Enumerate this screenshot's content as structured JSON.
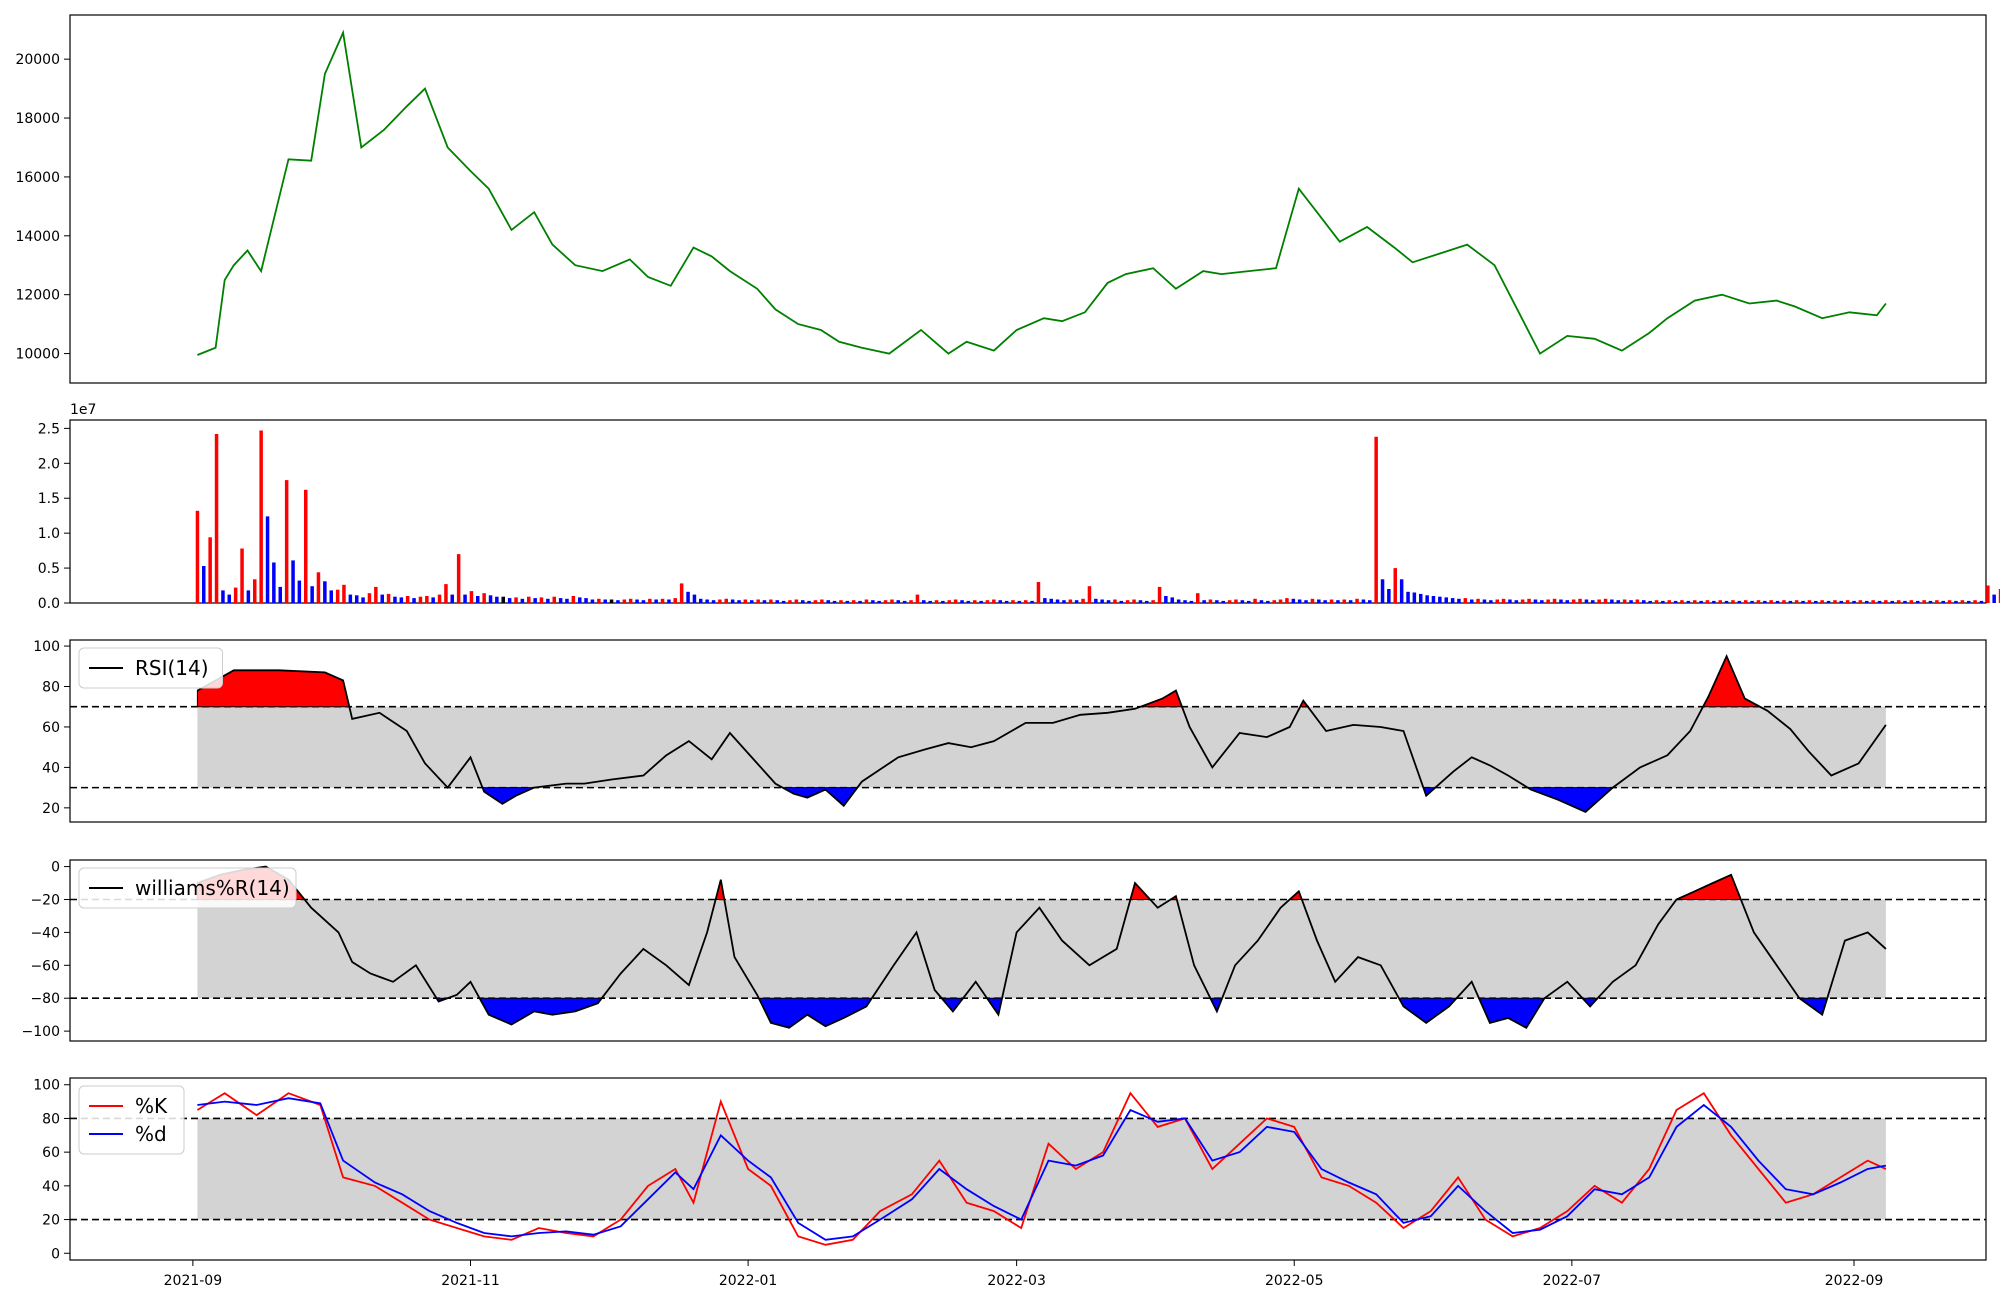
{
  "chart_data": [
    {
      "panel": "price",
      "type": "line",
      "ylim": [
        9000,
        21500
      ],
      "yticks": [
        "10000",
        "12000",
        "14000",
        "16000",
        "18000",
        "20000"
      ],
      "colors": {
        "line": "#008000"
      },
      "x": [
        "2021-09-02",
        "2021-09-06",
        "2021-09-08",
        "2021-09-10",
        "2021-09-13",
        "2021-09-16",
        "2021-09-22",
        "2021-09-27",
        "2021-09-30",
        "2021-10-04",
        "2021-10-08",
        "2021-10-13",
        "2021-10-18",
        "2021-10-22",
        "2021-10-27",
        "2021-11-01",
        "2021-11-05",
        "2021-11-10",
        "2021-11-15",
        "2021-11-19",
        "2021-11-24",
        "2021-11-30",
        "2021-12-06",
        "2021-12-10",
        "2021-12-15",
        "2021-12-20",
        "2021-12-24",
        "2021-12-28",
        "2022-01-03",
        "2022-01-07",
        "2022-01-12",
        "2022-01-17",
        "2022-01-21",
        "2022-01-26",
        "2022-02-01",
        "2022-02-08",
        "2022-02-14",
        "2022-02-18",
        "2022-02-24",
        "2022-03-01",
        "2022-03-07",
        "2022-03-11",
        "2022-03-16",
        "2022-03-21",
        "2022-03-25",
        "2022-03-31",
        "2022-04-05",
        "2022-04-11",
        "2022-04-15",
        "2022-04-21",
        "2022-04-27",
        "2022-05-02",
        "2022-05-06",
        "2022-05-11",
        "2022-05-17",
        "2022-05-23",
        "2022-05-27",
        "2022-06-02",
        "2022-06-08",
        "2022-06-14",
        "2022-06-20",
        "2022-06-24",
        "2022-06-30",
        "2022-07-06",
        "2022-07-12",
        "2022-07-18",
        "2022-07-22",
        "2022-07-28",
        "2022-08-03",
        "2022-08-09",
        "2022-08-15",
        "2022-08-19",
        "2022-08-25",
        "2022-08-31",
        "2022-09-06",
        "2022-09-08"
      ],
      "values": [
        9950,
        10200,
        12500,
        13000,
        13500,
        12800,
        16600,
        16550,
        19500,
        20900,
        17000,
        17600,
        18400,
        19000,
        17000,
        16200,
        15600,
        14200,
        14800,
        13700,
        13000,
        12800,
        13200,
        12600,
        12300,
        13600,
        13300,
        12800,
        12200,
        11500,
        11000,
        10800,
        10400,
        10200,
        10000,
        10800,
        10000,
        10400,
        10100,
        10800,
        11200,
        11100,
        11400,
        12400,
        12700,
        12900,
        12200,
        12800,
        12700,
        12800,
        12900,
        15600,
        14800,
        13800,
        14300,
        13600,
        13100,
        13400,
        13700,
        13000,
        11200,
        10000,
        10600,
        10500,
        10100,
        10700,
        11200,
        11800,
        12000,
        11700,
        11800,
        11600,
        11200,
        11400,
        11300,
        11700
      ]
    },
    {
      "panel": "volume",
      "type": "bar",
      "scale_label": "1e7",
      "ylim": [
        0,
        2.62
      ],
      "yticks": [
        "0.0",
        "0.5",
        "1.0",
        "1.5",
        "2.0",
        "2.5"
      ],
      "colors": {
        "up": "#ff0000",
        "down": "#0000ff",
        "flat": "#000000"
      },
      "x_start": "2021-09-02",
      "day_step": 1.4,
      "values": [
        1.32,
        0.53,
        0.94,
        2.42,
        0.18,
        0.12,
        0.22,
        0.78,
        0.18,
        0.34,
        2.47,
        1.24,
        0.58,
        0.23,
        1.76,
        0.61,
        0.32,
        1.62,
        0.24,
        0.44,
        0.31,
        0.18,
        0.19,
        0.26,
        0.12,
        0.11,
        0.08,
        0.14,
        0.23,
        0.12,
        0.13,
        0.09,
        0.08,
        0.1,
        0.07,
        0.09,
        0.1,
        0.08,
        0.12,
        0.27,
        0.12,
        0.7,
        0.12,
        0.17,
        0.1,
        0.14,
        0.11,
        0.09,
        0.09,
        0.07,
        0.08,
        0.06,
        0.09,
        0.07,
        0.08,
        0.06,
        0.09,
        0.07,
        0.06,
        0.1,
        0.08,
        0.07,
        0.05,
        0.06,
        0.05,
        0.05,
        0.04,
        0.05,
        0.06,
        0.05,
        0.04,
        0.06,
        0.05,
        0.06,
        0.05,
        0.07,
        0.28,
        0.16,
        0.12,
        0.06,
        0.05,
        0.04,
        0.05,
        0.06,
        0.05,
        0.04,
        0.05,
        0.04,
        0.05,
        0.04,
        0.05,
        0.04,
        0.03,
        0.04,
        0.05,
        0.04,
        0.03,
        0.04,
        0.05,
        0.04,
        0.03,
        0.04,
        0.03,
        0.04,
        0.03,
        0.05,
        0.04,
        0.03,
        0.04,
        0.05,
        0.04,
        0.03,
        0.04,
        0.12,
        0.04,
        0.03,
        0.04,
        0.03,
        0.04,
        0.05,
        0.04,
        0.03,
        0.04,
        0.03,
        0.04,
        0.05,
        0.04,
        0.03,
        0.04,
        0.03,
        0.04,
        0.03,
        0.3,
        0.07,
        0.06,
        0.05,
        0.04,
        0.05,
        0.04,
        0.06,
        0.24,
        0.06,
        0.05,
        0.04,
        0.05,
        0.03,
        0.04,
        0.05,
        0.04,
        0.03,
        0.04,
        0.23,
        0.1,
        0.08,
        0.05,
        0.04,
        0.03,
        0.14,
        0.04,
        0.05,
        0.04,
        0.03,
        0.04,
        0.05,
        0.04,
        0.03,
        0.06,
        0.04,
        0.03,
        0.04,
        0.05,
        0.07,
        0.06,
        0.05,
        0.04,
        0.06,
        0.05,
        0.04,
        0.05,
        0.04,
        0.05,
        0.04,
        0.06,
        0.05,
        0.04,
        2.38,
        0.34,
        0.2,
        0.5,
        0.34,
        0.16,
        0.15,
        0.13,
        0.11,
        0.1,
        0.09,
        0.08,
        0.07,
        0.06,
        0.07,
        0.05,
        0.06,
        0.05,
        0.04,
        0.05,
        0.06,
        0.05,
        0.04,
        0.05,
        0.06,
        0.05,
        0.04,
        0.05,
        0.06,
        0.05,
        0.04,
        0.05,
        0.06,
        0.05,
        0.04,
        0.05,
        0.06,
        0.05,
        0.04,
        0.05,
        0.04,
        0.05,
        0.04,
        0.03,
        0.04,
        0.03,
        0.04,
        0.03,
        0.04,
        0.03,
        0.04,
        0.03,
        0.04,
        0.03,
        0.04,
        0.03,
        0.04,
        0.03,
        0.04,
        0.03,
        0.04,
        0.03,
        0.04,
        0.03,
        0.04,
        0.03,
        0.04,
        0.03,
        0.04,
        0.03,
        0.04,
        0.03,
        0.04,
        0.03,
        0.04,
        0.03,
        0.04,
        0.03,
        0.04,
        0.03,
        0.04,
        0.03,
        0.04,
        0.03,
        0.04,
        0.03,
        0.04,
        0.03,
        0.04,
        0.03,
        0.04,
        0.03,
        0.04,
        0.03,
        0.04,
        0.03,
        0.25,
        0.12,
        0.2,
        0.06
      ]
    },
    {
      "panel": "rsi",
      "type": "area",
      "legend": [
        "RSI(14)"
      ],
      "ylim": [
        13,
        103
      ],
      "yticks": [
        "20",
        "40",
        "60",
        "80",
        "100"
      ],
      "upper": 70,
      "lower": 30,
      "colors": {
        "line": "#000000",
        "over": "#ff0000",
        "under": "#0000ff",
        "band": "#d3d3d3",
        "legend_fill": "#ffcccc"
      },
      "x": [
        "2021-09-02",
        "2021-09-10",
        "2021-09-20",
        "2021-09-30",
        "2021-10-04",
        "2021-10-06",
        "2021-10-12",
        "2021-10-18",
        "2021-10-22",
        "2021-10-27",
        "2021-11-01",
        "2021-11-04",
        "2021-11-08",
        "2021-11-11",
        "2021-11-15",
        "2021-11-22",
        "2021-11-26",
        "2021-12-02",
        "2021-12-09",
        "2021-12-14",
        "2021-12-19",
        "2021-12-24",
        "2021-12-28",
        "2022-01-03",
        "2022-01-07",
        "2022-01-11",
        "2022-01-14",
        "2022-01-18",
        "2022-01-22",
        "2022-01-26",
        "2022-02-03",
        "2022-02-09",
        "2022-02-14",
        "2022-02-19",
        "2022-02-24",
        "2022-03-03",
        "2022-03-09",
        "2022-03-15",
        "2022-03-21",
        "2022-03-27",
        "2022-04-02",
        "2022-04-05",
        "2022-04-08",
        "2022-04-13",
        "2022-04-19",
        "2022-04-25",
        "2022-04-30",
        "2022-05-03",
        "2022-05-08",
        "2022-05-14",
        "2022-05-20",
        "2022-05-25",
        "2022-05-30",
        "2022-06-05",
        "2022-06-09",
        "2022-06-13",
        "2022-06-17",
        "2022-06-22",
        "2022-06-28",
        "2022-07-04",
        "2022-07-10",
        "2022-07-16",
        "2022-07-22",
        "2022-07-27",
        "2022-07-31",
        "2022-08-04",
        "2022-08-08",
        "2022-08-13",
        "2022-08-18",
        "2022-08-22",
        "2022-08-27",
        "2022-09-02",
        "2022-09-08"
      ],
      "values": [
        78,
        88,
        88,
        87,
        83,
        64,
        67,
        58,
        42,
        30,
        45,
        28,
        22,
        26,
        30,
        32,
        32,
        34,
        36,
        46,
        53,
        44,
        57,
        42,
        32,
        27,
        25,
        29,
        21,
        33,
        45,
        49,
        52,
        50,
        53,
        62,
        62,
        66,
        67,
        69,
        74,
        78,
        60,
        40,
        57,
        55,
        60,
        73,
        58,
        61,
        60,
        58,
        26,
        38,
        45,
        41,
        36,
        29,
        24,
        18,
        30,
        40,
        46,
        58,
        75,
        95,
        74,
        68,
        59,
        48,
        36,
        42,
        61
      ]
    },
    {
      "panel": "williams",
      "type": "area",
      "legend": [
        "williams%R(14)"
      ],
      "ylim": [
        -106,
        4
      ],
      "yticks": [
        "0",
        "−20",
        "−40",
        "−60",
        "−80",
        "−100"
      ],
      "upper": -20,
      "lower": -80,
      "colors": {
        "line": "#000000",
        "over": "#ff0000",
        "under": "#0000ff",
        "band": "#d3d3d3",
        "legend_fill": "#ffcccc"
      },
      "x": [
        "2021-09-02",
        "2021-09-07",
        "2021-09-12",
        "2021-09-17",
        "2021-09-22",
        "2021-09-27",
        "2021-10-03",
        "2021-10-06",
        "2021-10-10",
        "2021-10-15",
        "2021-10-20",
        "2021-10-25",
        "2021-10-29",
        "2021-11-01",
        "2021-11-05",
        "2021-11-10",
        "2021-11-15",
        "2021-11-19",
        "2021-11-24",
        "2021-11-29",
        "2021-12-04",
        "2021-12-09",
        "2021-12-14",
        "2021-12-19",
        "2021-12-23",
        "2021-12-26",
        "2021-12-29",
        "2022-01-03",
        "2022-01-06",
        "2022-01-10",
        "2022-01-14",
        "2022-01-18",
        "2022-01-22",
        "2022-01-27",
        "2022-02-02",
        "2022-02-07",
        "2022-02-11",
        "2022-02-15",
        "2022-02-20",
        "2022-02-25",
        "2022-03-01",
        "2022-03-06",
        "2022-03-11",
        "2022-03-17",
        "2022-03-23",
        "2022-03-27",
        "2022-04-01",
        "2022-04-05",
        "2022-04-09",
        "2022-04-14",
        "2022-04-18",
        "2022-04-23",
        "2022-04-28",
        "2022-05-02",
        "2022-05-06",
        "2022-05-10",
        "2022-05-15",
        "2022-05-20",
        "2022-05-25",
        "2022-05-30",
        "2022-06-04",
        "2022-06-09",
        "2022-06-13",
        "2022-06-17",
        "2022-06-21",
        "2022-06-25",
        "2022-06-30",
        "2022-07-05",
        "2022-07-10",
        "2022-07-15",
        "2022-07-20",
        "2022-07-24",
        "2022-07-28",
        "2022-08-01",
        "2022-08-05",
        "2022-08-10",
        "2022-08-15",
        "2022-08-20",
        "2022-08-25",
        "2022-08-30",
        "2022-09-04",
        "2022-09-08"
      ],
      "values": [
        -10,
        -5,
        -2,
        0,
        -8,
        -25,
        -40,
        -58,
        -65,
        -70,
        -60,
        -82,
        -78,
        -70,
        -90,
        -96,
        -88,
        -90,
        -88,
        -83,
        -65,
        -50,
        -60,
        -72,
        -40,
        -8,
        -55,
        -78,
        -95,
        -98,
        -90,
        -97,
        -92,
        -85,
        -60,
        -40,
        -75,
        -88,
        -70,
        -90,
        -40,
        -25,
        -45,
        -60,
        -50,
        -10,
        -25,
        -18,
        -60,
        -88,
        -60,
        -45,
        -25,
        -15,
        -45,
        -70,
        -55,
        -60,
        -85,
        -95,
        -85,
        -70,
        -95,
        -92,
        -98,
        -80,
        -70,
        -85,
        -70,
        -60,
        -35,
        -20,
        -15,
        -10,
        -5,
        -40,
        -60,
        -80,
        -90,
        -45,
        -40,
        -50
      ]
    },
    {
      "panel": "stochastic",
      "type": "line",
      "legend": [
        "%K",
        "%d"
      ],
      "ylim": [
        -4,
        104
      ],
      "yticks": [
        "0",
        "20",
        "40",
        "60",
        "80",
        "100"
      ],
      "upper": 80,
      "lower": 20,
      "colors": {
        "k": "#ff0000",
        "d": "#0000ff",
        "band": "#d3d3d3"
      },
      "x": [
        "2021-09-02",
        "2021-09-08",
        "2021-09-15",
        "2021-09-22",
        "2021-09-29",
        "2021-10-04",
        "2021-10-11",
        "2021-10-17",
        "2021-10-23",
        "2021-10-29",
        "2021-11-04",
        "2021-11-10",
        "2021-11-16",
        "2021-11-22",
        "2021-11-28",
        "2021-12-04",
        "2021-12-10",
        "2021-12-16",
        "2021-12-20",
        "2021-12-26",
        "2022-01-01",
        "2022-01-06",
        "2022-01-12",
        "2022-01-18",
        "2022-01-24",
        "2022-01-30",
        "2022-02-06",
        "2022-02-12",
        "2022-02-18",
        "2022-02-24",
        "2022-03-02",
        "2022-03-08",
        "2022-03-14",
        "2022-03-20",
        "2022-03-26",
        "2022-04-01",
        "2022-04-07",
        "2022-04-13",
        "2022-04-19",
        "2022-04-25",
        "2022-05-01",
        "2022-05-07",
        "2022-05-13",
        "2022-05-19",
        "2022-05-25",
        "2022-05-31",
        "2022-06-06",
        "2022-06-12",
        "2022-06-18",
        "2022-06-24",
        "2022-06-30",
        "2022-07-06",
        "2022-07-12",
        "2022-07-18",
        "2022-07-24",
        "2022-07-30",
        "2022-08-05",
        "2022-08-11",
        "2022-08-17",
        "2022-08-23",
        "2022-08-29",
        "2022-09-04",
        "2022-09-08"
      ],
      "k": [
        85,
        95,
        82,
        95,
        88,
        45,
        40,
        30,
        20,
        15,
        10,
        8,
        15,
        12,
        10,
        20,
        40,
        50,
        30,
        90,
        50,
        40,
        10,
        5,
        8,
        25,
        35,
        55,
        30,
        25,
        15,
        65,
        50,
        60,
        95,
        75,
        80,
        50,
        65,
        80,
        75,
        45,
        40,
        30,
        15,
        25,
        45,
        20,
        10,
        15,
        25,
        40,
        30,
        50,
        85,
        95,
        70,
        50,
        30,
        35,
        45,
        55,
        50
      ],
      "d": [
        88,
        90,
        88,
        92,
        89,
        55,
        42,
        35,
        25,
        18,
        12,
        10,
        12,
        13,
        11,
        16,
        32,
        48,
        38,
        70,
        55,
        45,
        18,
        8,
        10,
        20,
        32,
        50,
        38,
        28,
        20,
        55,
        52,
        58,
        85,
        78,
        80,
        55,
        60,
        75,
        72,
        50,
        42,
        35,
        18,
        22,
        40,
        25,
        12,
        14,
        22,
        38,
        35,
        45,
        75,
        88,
        75,
        55,
        38,
        35,
        42,
        50,
        52
      ]
    }
  ],
  "x_axis": {
    "ticks": [
      "2021-09",
      "2021-11",
      "2022-01",
      "2022-03",
      "2022-05",
      "2022-07",
      "2022-09"
    ],
    "range": [
      "2021-08-05",
      "2022-09-30"
    ]
  }
}
